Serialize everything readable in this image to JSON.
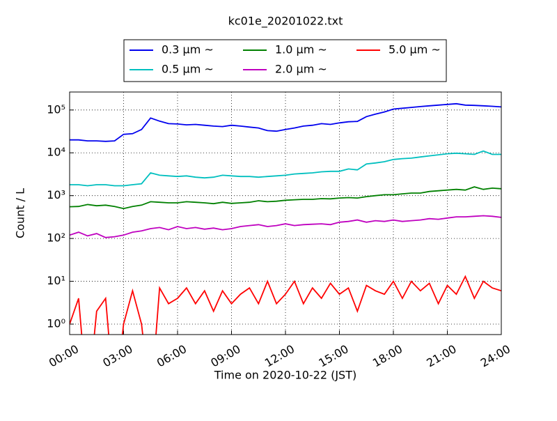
{
  "chart_data": {
    "type": "line",
    "title": "kc01e_20201022.txt",
    "xlabel": "Time on 2020-10-22 (JST)",
    "ylabel": "Count / L",
    "x": [
      0,
      0.5,
      1,
      1.5,
      2,
      2.5,
      3,
      3.5,
      4,
      4.5,
      5,
      5.5,
      6,
      6.5,
      7,
      7.5,
      8,
      8.5,
      9,
      9.5,
      10,
      10.5,
      11,
      11.5,
      12,
      12.5,
      13,
      13.5,
      14,
      14.5,
      15,
      15.5,
      16,
      16.5,
      17,
      17.5,
      18,
      18.5,
      19,
      19.5,
      20,
      20.5,
      21,
      21.5,
      22,
      22.5,
      23,
      23.5,
      24
    ],
    "series": [
      {
        "name": "0.3 μm ~",
        "color": "#0000ee",
        "values": [
          20000,
          20000,
          19000,
          19000,
          18500,
          19000,
          27000,
          28000,
          35000,
          65000,
          55000,
          48000,
          47000,
          45000,
          46000,
          44000,
          42000,
          41000,
          44000,
          42000,
          40000,
          38000,
          33000,
          32000,
          35000,
          38000,
          42000,
          44000,
          48000,
          46000,
          50000,
          53000,
          54000,
          70000,
          80000,
          90000,
          105000,
          110000,
          115000,
          120000,
          125000,
          130000,
          135000,
          140000,
          130000,
          128000,
          125000,
          122000,
          118000
        ]
      },
      {
        "name": "0.5 μm ~",
        "color": "#00bfbf",
        "values": [
          1800,
          1800,
          1700,
          1800,
          1800,
          1700,
          1700,
          1800,
          1900,
          3400,
          3000,
          2900,
          2800,
          2900,
          2700,
          2600,
          2700,
          3000,
          2900,
          2800,
          2800,
          2700,
          2800,
          2900,
          3000,
          3200,
          3300,
          3400,
          3600,
          3700,
          3700,
          4200,
          4000,
          5500,
          5800,
          6200,
          7000,
          7300,
          7500,
          8000,
          8500,
          9000,
          9500,
          9800,
          9500,
          9200,
          11000,
          9200,
          9200
        ]
      },
      {
        "name": "1.0 μm ~",
        "color": "#008000",
        "values": [
          550,
          560,
          620,
          580,
          600,
          560,
          500,
          560,
          600,
          720,
          700,
          680,
          680,
          720,
          700,
          680,
          650,
          700,
          660,
          680,
          700,
          760,
          720,
          740,
          780,
          800,
          820,
          820,
          850,
          840,
          880,
          900,
          880,
          950,
          1000,
          1050,
          1050,
          1100,
          1150,
          1150,
          1250,
          1300,
          1350,
          1400,
          1350,
          1600,
          1400,
          1500,
          1450
        ]
      },
      {
        "name": "2.0 μm ~",
        "color": "#bf00bf",
        "values": [
          120,
          140,
          115,
          130,
          105,
          110,
          120,
          140,
          150,
          170,
          180,
          160,
          190,
          170,
          180,
          165,
          175,
          160,
          170,
          190,
          200,
          210,
          190,
          200,
          220,
          200,
          210,
          215,
          220,
          210,
          240,
          250,
          270,
          240,
          260,
          250,
          270,
          250,
          260,
          270,
          290,
          280,
          300,
          320,
          320,
          330,
          340,
          330,
          310
        ]
      },
      {
        "name": "5.0 μm ~",
        "color": "#ff0000",
        "values": [
          1,
          4,
          0,
          2,
          4,
          0,
          1,
          6,
          1,
          0,
          7,
          3,
          4,
          7,
          3,
          6,
          2,
          6,
          3,
          5,
          7,
          3,
          10,
          3,
          5,
          10,
          3,
          7,
          4,
          9,
          5,
          7,
          2,
          8,
          6,
          5,
          10,
          4,
          10,
          6,
          9,
          3,
          8,
          5,
          13,
          4,
          10,
          7,
          6
        ]
      }
    ],
    "xlim": [
      0,
      24
    ],
    "xticks": [
      {
        "value": 0,
        "label": "00:00"
      },
      {
        "value": 3,
        "label": "03:00"
      },
      {
        "value": 6,
        "label": "06:00"
      },
      {
        "value": 9,
        "label": "09:00"
      },
      {
        "value": 12,
        "label": "12:00"
      },
      {
        "value": 15,
        "label": "15:00"
      },
      {
        "value": 18,
        "label": "18:00"
      },
      {
        "value": 21,
        "label": "21:00"
      },
      {
        "value": 24,
        "label": "24:00"
      }
    ],
    "ylim": [
      0.57,
      263000
    ],
    "log_y": true,
    "yticks": [
      {
        "value": 1,
        "label": "10⁰"
      },
      {
        "value": 10,
        "label": "10¹"
      },
      {
        "value": 100,
        "label": "10²"
      },
      {
        "value": 1000,
        "label": "10³"
      },
      {
        "value": 10000,
        "label": "10⁴"
      },
      {
        "value": 100000,
        "label": "10⁵"
      }
    ],
    "grid": true,
    "legend": "upper center"
  }
}
